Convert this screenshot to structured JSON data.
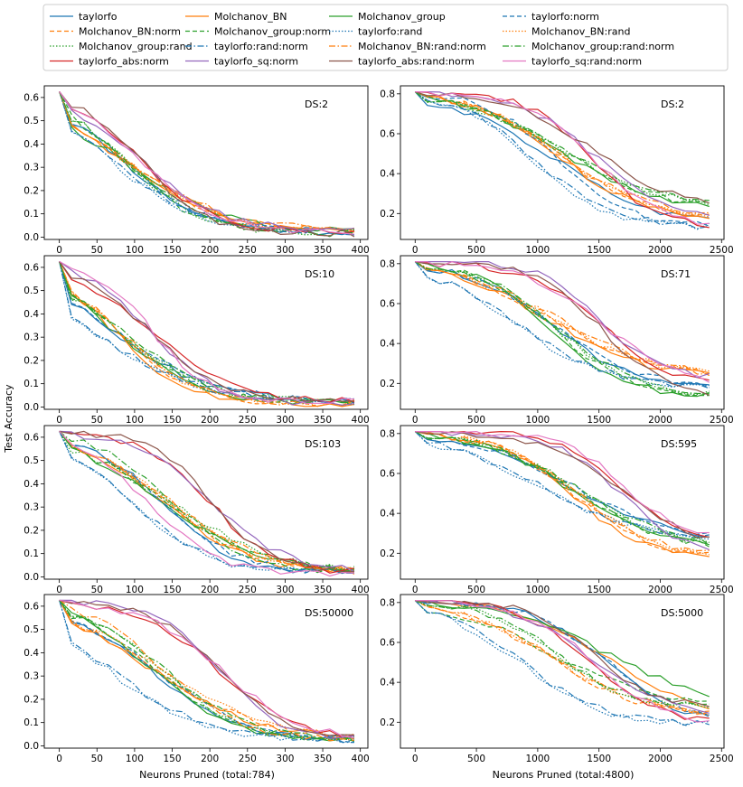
{
  "figure": {
    "ylabel_shared": "Test Accuracy",
    "xlabel_left": "Neurons Pruned (total:784)",
    "xlabel_right": "Neurons Pruned (total:4800)"
  },
  "legend": {
    "columns": 4,
    "entries": [
      {
        "name": "taylorfo",
        "color": "#1f77b4",
        "dash": "solid"
      },
      {
        "name": "Molchanov_BN",
        "color": "#ff7f0e",
        "dash": "solid"
      },
      {
        "name": "Molchanov_group",
        "color": "#2ca02c",
        "dash": "solid"
      },
      {
        "name": "taylorfo:norm",
        "color": "#1f77b4",
        "dash": "dashed"
      },
      {
        "name": "Molchanov_BN:norm",
        "color": "#ff7f0e",
        "dash": "dashed"
      },
      {
        "name": "Molchanov_group:norm",
        "color": "#2ca02c",
        "dash": "dashed"
      },
      {
        "name": "taylorfo:rand",
        "color": "#1f77b4",
        "dash": "dotted"
      },
      {
        "name": "Molchanov_BN:rand",
        "color": "#ff7f0e",
        "dash": "dotted"
      },
      {
        "name": "Molchanov_group:rand",
        "color": "#2ca02c",
        "dash": "dotted"
      },
      {
        "name": "taylorfo:rand:norm",
        "color": "#1f77b4",
        "dash": "dashdot"
      },
      {
        "name": "Molchanov_BN:rand:norm",
        "color": "#ff7f0e",
        "dash": "dashdot"
      },
      {
        "name": "Molchanov_group:rand:norm",
        "color": "#2ca02c",
        "dash": "dashdot"
      },
      {
        "name": "taylorfo_abs:norm",
        "color": "#d62728",
        "dash": "solid"
      },
      {
        "name": "taylorfo_sq:norm",
        "color": "#9467bd",
        "dash": "solid"
      },
      {
        "name": "taylorfo_abs:rand:norm",
        "color": "#8c564b",
        "dash": "solid"
      },
      {
        "name": "taylorfo_sq:rand:norm",
        "color": "#e377c2",
        "dash": "solid"
      }
    ]
  },
  "chart_data": [
    {
      "type": "line",
      "label": "DS:2",
      "xlim": [
        -20,
        410
      ],
      "ylim": [
        -0.01,
        0.65
      ],
      "xticks": [
        "0",
        "50",
        "100",
        "150",
        "200",
        "250",
        "300",
        "350",
        "400"
      ],
      "yticks": [
        "0.0",
        "0.1",
        "0.2",
        "0.3",
        "0.4",
        "0.5",
        "0.6"
      ],
      "ytick_values": [
        0,
        0.1,
        0.2,
        0.3,
        0.4,
        0.5,
        0.6
      ],
      "xtick_values": [
        0,
        50,
        100,
        150,
        200,
        250,
        300,
        350,
        400
      ],
      "x_end": 392,
      "y0": 0.625,
      "yf": 0.015,
      "mid": 95,
      "spread": 20,
      "steep": 1.0
    },
    {
      "type": "line",
      "label": "DS:2",
      "xlim": [
        -120,
        2520
      ],
      "ylim": [
        0.07,
        0.84
      ],
      "xticks": [
        "0",
        "500",
        "1000",
        "1500",
        "2000",
        "2500"
      ],
      "yticks": [
        "0.2",
        "0.4",
        "0.6",
        "0.8"
      ],
      "ytick_values": [
        0.2,
        0.4,
        0.6,
        0.8
      ],
      "xtick_values": [
        0,
        500,
        1000,
        1500,
        2000,
        2500
      ],
      "x_end": 2400,
      "y0": 0.81,
      "yf": 0.12,
      "mid": 1100,
      "spread": 250,
      "steep": 0.35
    },
    {
      "type": "line",
      "label": "DS:10",
      "xlim": [
        -20,
        410
      ],
      "ylim": [
        -0.01,
        0.65
      ],
      "xticks": [
        "0",
        "50",
        "100",
        "150",
        "200",
        "250",
        "300",
        "350",
        "400"
      ],
      "yticks": [
        "0.0",
        "0.1",
        "0.2",
        "0.3",
        "0.4",
        "0.5",
        "0.6"
      ],
      "ytick_values": [
        0,
        0.1,
        0.2,
        0.3,
        0.4,
        0.5,
        0.6
      ],
      "xtick_values": [
        0,
        50,
        100,
        150,
        200,
        250,
        300,
        350,
        400
      ],
      "x_end": 392,
      "y0": 0.625,
      "yf": 0.012,
      "mid": 105,
      "spread": 40,
      "steep": 1.0
    },
    {
      "type": "line",
      "label": "DS:71",
      "xlim": [
        -120,
        2520
      ],
      "ylim": [
        0.07,
        0.84
      ],
      "xticks": [
        "0",
        "500",
        "1000",
        "1500",
        "2000",
        "2500"
      ],
      "yticks": [
        "0.2",
        "0.4",
        "0.6",
        "0.8"
      ],
      "ytick_values": [
        0.2,
        0.4,
        0.6,
        0.8
      ],
      "xtick_values": [
        0,
        500,
        1000,
        1500,
        2000,
        2500
      ],
      "x_end": 2400,
      "y0": 0.81,
      "yf": 0.11,
      "mid": 1150,
      "spread": 350,
      "steep": 0.4
    },
    {
      "type": "line",
      "label": "DS:103",
      "xlim": [
        -20,
        410
      ],
      "ylim": [
        -0.01,
        0.65
      ],
      "xticks": [
        "0",
        "50",
        "100",
        "150",
        "200",
        "250",
        "300",
        "350",
        "400"
      ],
      "yticks": [
        "0.0",
        "0.1",
        "0.2",
        "0.3",
        "0.4",
        "0.5",
        "0.6"
      ],
      "ytick_values": [
        0,
        0.1,
        0.2,
        0.3,
        0.4,
        0.5,
        0.6
      ],
      "xtick_values": [
        0,
        50,
        100,
        150,
        200,
        250,
        300,
        350,
        400
      ],
      "x_end": 392,
      "y0": 0.625,
      "yf": 0.012,
      "mid": 110,
      "spread": 55,
      "steep": 1.0
    },
    {
      "type": "line",
      "label": "DS:595",
      "xlim": [
        -120,
        2520
      ],
      "ylim": [
        0.07,
        0.84
      ],
      "xticks": [
        "0",
        "500",
        "1000",
        "1500",
        "2000",
        "2500"
      ],
      "yticks": [
        "0.2",
        "0.4",
        "0.6",
        "0.8"
      ],
      "ytick_values": [
        0.2,
        0.4,
        0.6,
        0.8
      ],
      "xtick_values": [
        0,
        500,
        1000,
        1500,
        2000,
        2500
      ],
      "x_end": 2400,
      "y0": 0.81,
      "yf": 0.14,
      "mid": 1450,
      "spread": 350,
      "steep": 0.45
    },
    {
      "type": "line",
      "label": "DS:50000",
      "xlim": [
        -20,
        410
      ],
      "ylim": [
        -0.01,
        0.65
      ],
      "xticks": [
        "0",
        "50",
        "100",
        "150",
        "200",
        "250",
        "300",
        "350",
        "400"
      ],
      "yticks": [
        "0.0",
        "0.1",
        "0.2",
        "0.3",
        "0.4",
        "0.5",
        "0.6"
      ],
      "ytick_values": [
        0,
        0.1,
        0.2,
        0.3,
        0.4,
        0.5,
        0.6
      ],
      "xtick_values": [
        0,
        50,
        100,
        150,
        200,
        250,
        300,
        350,
        400
      ],
      "x_end": 392,
      "y0": 0.625,
      "yf": 0.015,
      "mid": 115,
      "spread": 75,
      "steep": 1.0
    },
    {
      "type": "line",
      "label": "DS:5000",
      "xlim": [
        -120,
        2520
      ],
      "ylim": [
        0.07,
        0.84
      ],
      "xticks": [
        "0",
        "500",
        "1000",
        "1500",
        "2000",
        "2500"
      ],
      "yticks": [
        "0.2",
        "0.4",
        "0.6",
        "0.8"
      ],
      "ytick_values": [
        0.2,
        0.4,
        0.6,
        0.8
      ],
      "xtick_values": [
        0,
        500,
        1000,
        1500,
        2000,
        2500
      ],
      "x_end": 2400,
      "y0": 0.81,
      "yf": 0.14,
      "mid": 1350,
      "spread": 300,
      "steep": 0.45
    }
  ]
}
